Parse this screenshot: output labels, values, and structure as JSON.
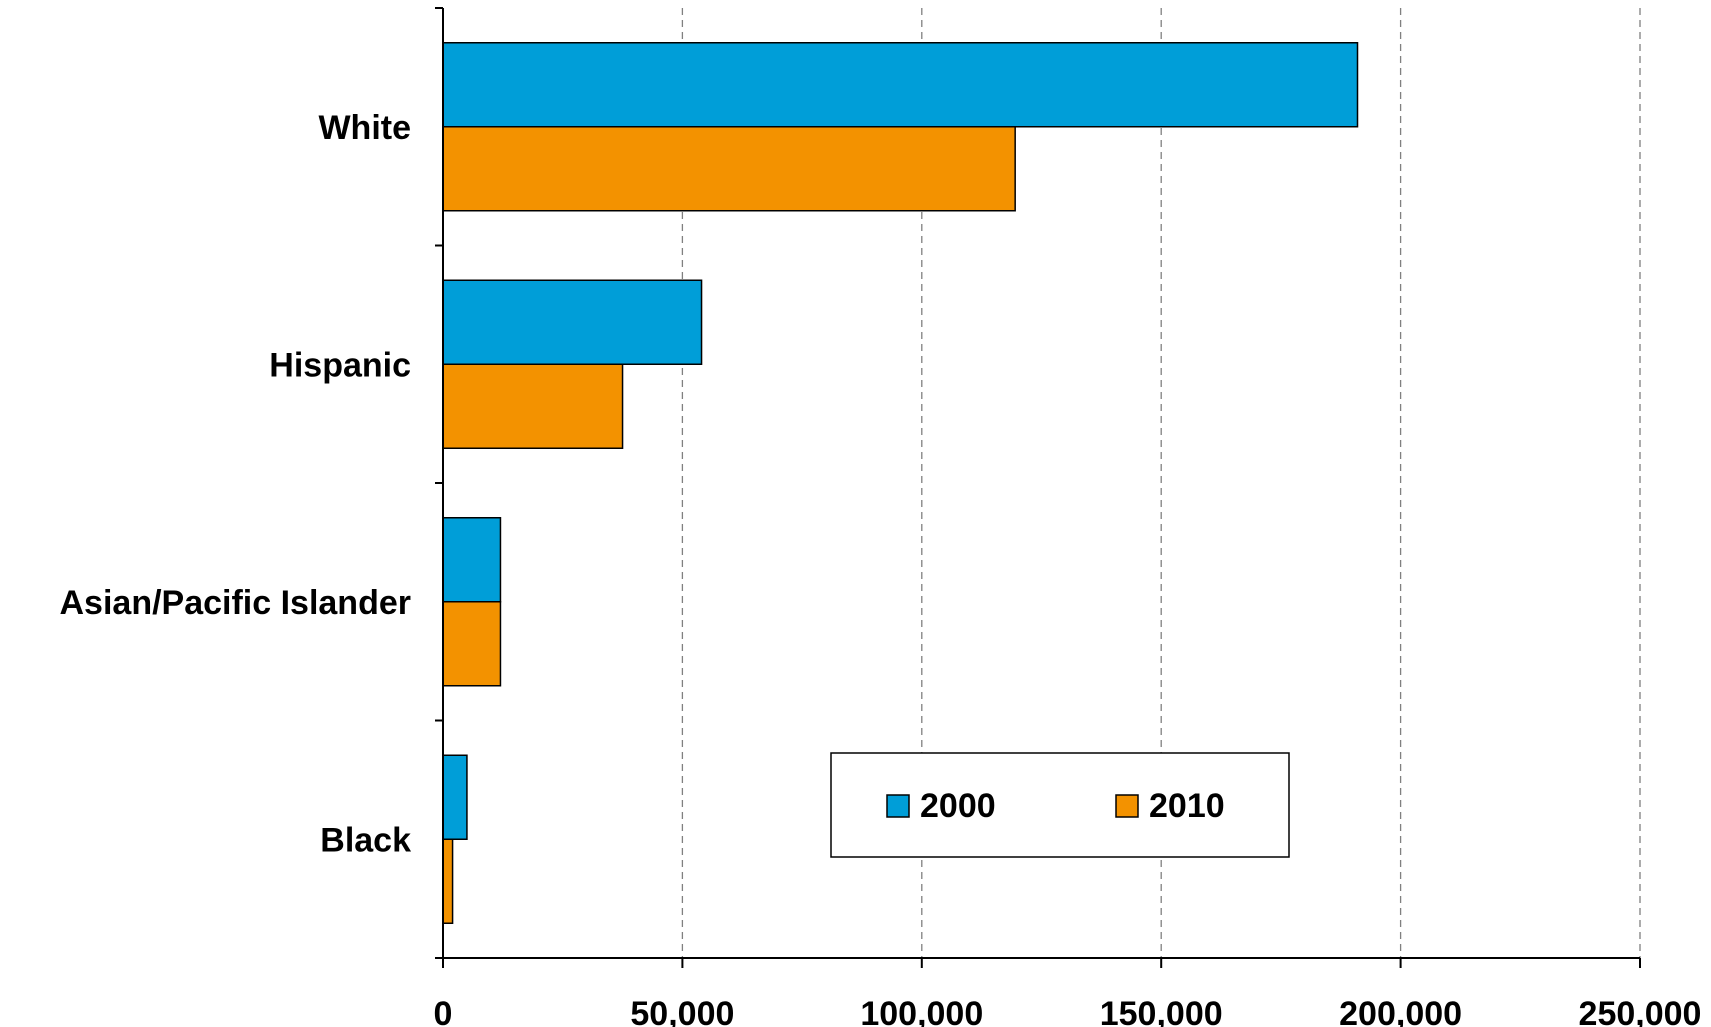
{
  "chart_data": {
    "type": "bar",
    "orientation": "horizontal",
    "categories": [
      "White",
      "Hispanic",
      "Asian/Pacific Islander",
      "Black"
    ],
    "series": [
      {
        "name": "2000",
        "color": "#009ed8",
        "values": [
          191000,
          54000,
          12000,
          5000
        ]
      },
      {
        "name": "2010",
        "color": "#f39200",
        "values": [
          119500,
          37500,
          12000,
          2000
        ]
      }
    ],
    "xlim": [
      0,
      250000
    ],
    "xticks": [
      0,
      50000,
      100000,
      150000,
      200000,
      250000
    ],
    "xtick_labels": [
      "0",
      "50,000",
      "100,000",
      "150,000",
      "200,000",
      "250,000"
    ],
    "grid": "vertical dashed",
    "legend_position": "lower-right",
    "title": "",
    "xlabel": "",
    "ylabel": ""
  }
}
